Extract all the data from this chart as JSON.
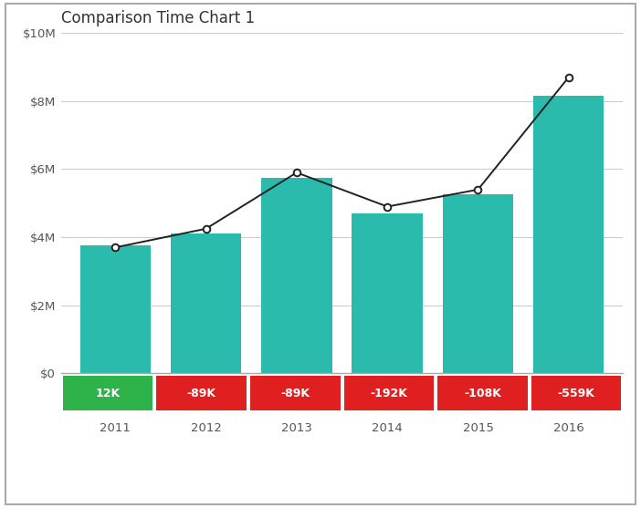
{
  "title": "Comparison Time Chart 1",
  "categories": [
    "2011",
    "2012",
    "2013",
    "2014",
    "2015",
    "2016"
  ],
  "bar_values": [
    3750000,
    4100000,
    5750000,
    4700000,
    5250000,
    8150000
  ],
  "line_values": [
    3700000,
    4250000,
    5900000,
    4900000,
    5400000,
    8700000
  ],
  "delta_labels": [
    "12K",
    "-89K",
    "-89K",
    "-192K",
    "-108K",
    "-559K"
  ],
  "delta_colors": [
    "#2db34a",
    "#e02020",
    "#e02020",
    "#e02020",
    "#e02020",
    "#e02020"
  ],
  "bar_color": "#2bbbad",
  "line_color": "#222222",
  "background_color": "#ffffff",
  "border_color": "#aaaaaa",
  "ylim": [
    0,
    10000000
  ],
  "yticks": [
    0,
    2000000,
    4000000,
    6000000,
    8000000,
    10000000
  ],
  "ytick_labels": [
    "$0",
    "$2M",
    "$4M",
    "$6M",
    "$8M",
    "$10M"
  ],
  "title_fontsize": 12,
  "axis_fontsize": 9.5,
  "delta_fontsize": 9
}
